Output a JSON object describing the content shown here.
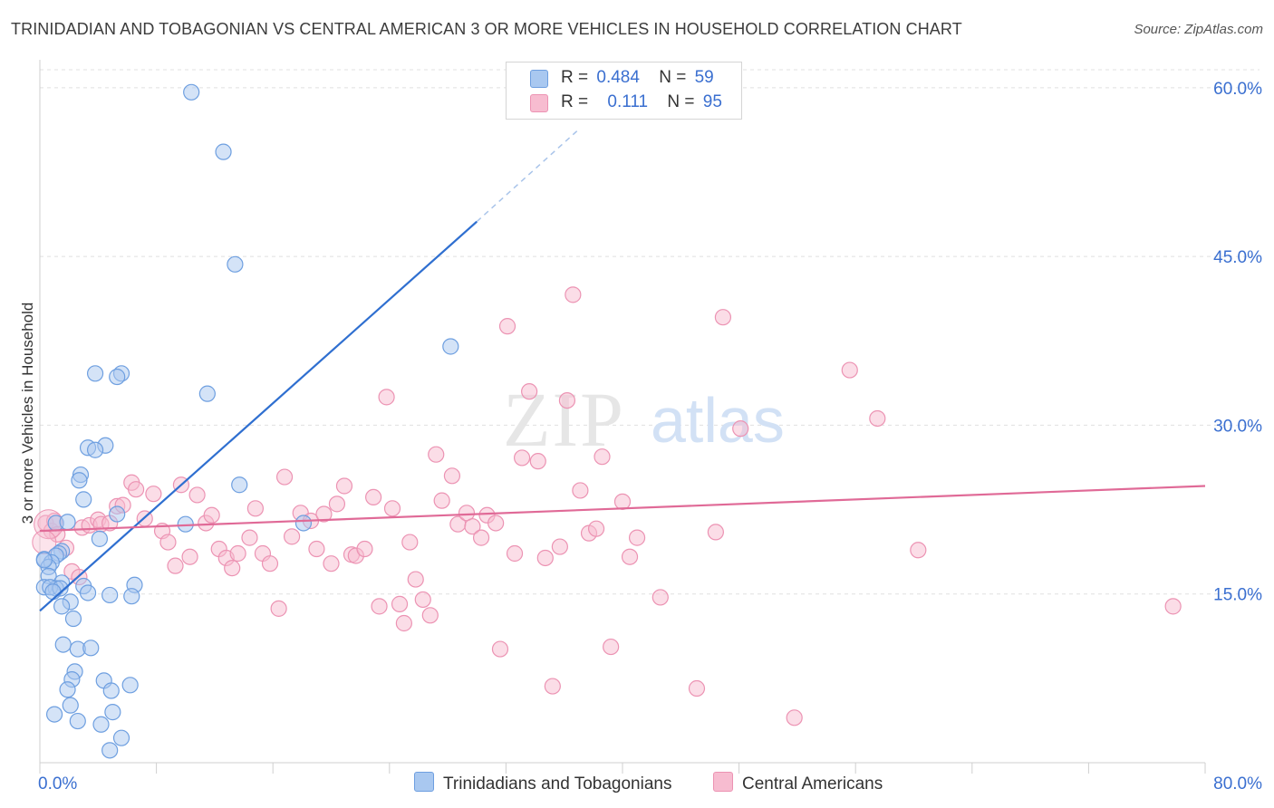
{
  "title": "TRINIDADIAN AND TOBAGONIAN VS CENTRAL AMERICAN 3 OR MORE VEHICLES IN HOUSEHOLD CORRELATION CHART",
  "source": "Source: ZipAtlas.com",
  "watermark": {
    "zip": "ZIP",
    "atlas": "atlas"
  },
  "legend": {
    "r_label": "R =",
    "n_label": "N =",
    "series1": {
      "r": "0.484",
      "n": "59"
    },
    "series2": {
      "r": "0.111",
      "n": "95"
    }
  },
  "colors": {
    "blue_fill": "#a9c8f0",
    "blue_stroke": "#6e9fe0",
    "blue_line": "#2f6fd0",
    "pink_fill": "#f7bcd0",
    "pink_stroke": "#ec93b3",
    "pink_line": "#e06a97",
    "axis_label": "#3a6fd0"
  },
  "chart_data": {
    "type": "scatter",
    "title": "TRINIDADIAN AND TOBAGONIAN VS CENTRAL AMERICAN 3 OR MORE VEHICLES IN HOUSEHOLD CORRELATION CHART",
    "xlabel": "",
    "ylabel": "3 or more Vehicles in Household",
    "xlim": [
      0,
      80
    ],
    "ylim": [
      0,
      62
    ],
    "x_tick_labels": [
      "0.0%",
      "80.0%"
    ],
    "y_ticks": [
      15,
      30,
      45,
      60
    ],
    "y_tick_labels": [
      "15.0%",
      "30.0%",
      "45.0%",
      "60.0%"
    ],
    "grid": true,
    "legend_position": "top-center",
    "series": [
      {
        "name": "Trinidadians and Tobagonians",
        "color": "#6e9fe0",
        "trend": {
          "x0": 0,
          "y0": 13.5,
          "x1": 30,
          "y1": 48.1,
          "dashed_to_x": 37,
          "dashed_to_y": 56.3
        },
        "points": [
          [
            10.4,
            59.6
          ],
          [
            12.6,
            54.3
          ],
          [
            13.4,
            44.3
          ],
          [
            28.2,
            37.0
          ],
          [
            5.6,
            34.6
          ],
          [
            5.3,
            34.3
          ],
          [
            3.8,
            34.6
          ],
          [
            11.5,
            32.8
          ],
          [
            4.5,
            28.2
          ],
          [
            3.3,
            28.0
          ],
          [
            3.8,
            27.8
          ],
          [
            2.8,
            25.6
          ],
          [
            2.7,
            25.1
          ],
          [
            13.7,
            24.7
          ],
          [
            3.0,
            23.4
          ],
          [
            1.1,
            21.3
          ],
          [
            5.3,
            22.1
          ],
          [
            1.9,
            21.4
          ],
          [
            10.0,
            21.2
          ],
          [
            18.1,
            21.3
          ],
          [
            4.1,
            19.9
          ],
          [
            0.3,
            18.1
          ],
          [
            1.5,
            18.8
          ],
          [
            1.3,
            18.6
          ],
          [
            1.1,
            18.4
          ],
          [
            0.8,
            17.8
          ],
          [
            0.6,
            17.4
          ],
          [
            0.6,
            16.6
          ],
          [
            1.5,
            16.0
          ],
          [
            6.5,
            15.8
          ],
          [
            3.0,
            15.7
          ],
          [
            0.3,
            15.6
          ],
          [
            1.1,
            15.5
          ],
          [
            0.7,
            15.6
          ],
          [
            1.4,
            15.5
          ],
          [
            4.8,
            14.9
          ],
          [
            6.3,
            14.8
          ],
          [
            3.3,
            15.1
          ],
          [
            2.1,
            14.3
          ],
          [
            1.5,
            13.9
          ],
          [
            2.3,
            12.8
          ],
          [
            1.6,
            10.5
          ],
          [
            2.6,
            10.1
          ],
          [
            3.5,
            10.2
          ],
          [
            2.4,
            8.1
          ],
          [
            2.2,
            7.4
          ],
          [
            4.4,
            7.3
          ],
          [
            6.2,
            6.9
          ],
          [
            1.9,
            6.5
          ],
          [
            4.9,
            6.4
          ],
          [
            2.1,
            5.1
          ],
          [
            5.0,
            4.5
          ],
          [
            1.0,
            4.3
          ],
          [
            2.6,
            3.7
          ],
          [
            4.2,
            3.4
          ],
          [
            5.6,
            2.2
          ],
          [
            4.8,
            1.1
          ],
          [
            0.3,
            18.0
          ],
          [
            0.9,
            15.2
          ]
        ]
      },
      {
        "name": "Central Americans",
        "color": "#ec93b3",
        "trend": {
          "x0": 0,
          "y0": 20.6,
          "x1": 80,
          "y1": 24.6
        },
        "points": [
          [
            0.4,
            21.3
          ],
          [
            0.8,
            20.6
          ],
          [
            1.0,
            21.5
          ],
          [
            1.2,
            20.3
          ],
          [
            1.8,
            19.1
          ],
          [
            2.2,
            17.0
          ],
          [
            2.7,
            16.5
          ],
          [
            2.9,
            20.9
          ],
          [
            3.4,
            21.1
          ],
          [
            4.0,
            21.6
          ],
          [
            4.2,
            21.2
          ],
          [
            4.8,
            21.3
          ],
          [
            5.3,
            22.8
          ],
          [
            5.7,
            22.9
          ],
          [
            6.3,
            24.9
          ],
          [
            6.6,
            24.3
          ],
          [
            7.2,
            21.7
          ],
          [
            7.8,
            23.9
          ],
          [
            8.4,
            20.6
          ],
          [
            8.8,
            19.6
          ],
          [
            9.3,
            17.5
          ],
          [
            9.7,
            24.7
          ],
          [
            10.3,
            18.3
          ],
          [
            10.8,
            23.8
          ],
          [
            11.4,
            21.3
          ],
          [
            11.8,
            22.0
          ],
          [
            12.3,
            19.0
          ],
          [
            12.8,
            18.2
          ],
          [
            13.2,
            17.3
          ],
          [
            13.6,
            18.6
          ],
          [
            14.4,
            20.0
          ],
          [
            14.8,
            22.6
          ],
          [
            15.3,
            18.6
          ],
          [
            15.8,
            17.7
          ],
          [
            16.4,
            13.7
          ],
          [
            16.8,
            25.4
          ],
          [
            17.3,
            20.1
          ],
          [
            17.9,
            22.2
          ],
          [
            18.6,
            21.5
          ],
          [
            19.0,
            19.0
          ],
          [
            19.5,
            22.1
          ],
          [
            20.0,
            17.7
          ],
          [
            20.4,
            23.0
          ],
          [
            20.9,
            24.6
          ],
          [
            21.4,
            18.5
          ],
          [
            21.7,
            18.4
          ],
          [
            22.3,
            19.0
          ],
          [
            22.9,
            23.6
          ],
          [
            23.3,
            13.9
          ],
          [
            23.8,
            32.5
          ],
          [
            24.2,
            22.6
          ],
          [
            24.7,
            14.1
          ],
          [
            25.0,
            12.4
          ],
          [
            25.4,
            19.6
          ],
          [
            25.8,
            16.3
          ],
          [
            26.3,
            14.5
          ],
          [
            26.8,
            13.1
          ],
          [
            27.2,
            27.4
          ],
          [
            27.6,
            23.3
          ],
          [
            28.3,
            25.5
          ],
          [
            28.7,
            21.2
          ],
          [
            29.3,
            22.2
          ],
          [
            29.7,
            21.0
          ],
          [
            30.3,
            20.0
          ],
          [
            30.7,
            22.0
          ],
          [
            31.3,
            21.3
          ],
          [
            31.6,
            10.1
          ],
          [
            32.1,
            38.8
          ],
          [
            32.6,
            18.6
          ],
          [
            33.1,
            27.1
          ],
          [
            33.6,
            33.0
          ],
          [
            34.2,
            26.8
          ],
          [
            34.7,
            18.2
          ],
          [
            35.2,
            6.8
          ],
          [
            35.7,
            19.2
          ],
          [
            36.2,
            32.2
          ],
          [
            36.6,
            41.6
          ],
          [
            37.1,
            24.2
          ],
          [
            37.7,
            20.4
          ],
          [
            38.2,
            20.8
          ],
          [
            38.6,
            27.2
          ],
          [
            39.2,
            10.3
          ],
          [
            40.0,
            23.2
          ],
          [
            40.5,
            18.3
          ],
          [
            41.0,
            20.0
          ],
          [
            42.6,
            14.7
          ],
          [
            45.1,
            6.6
          ],
          [
            46.4,
            20.5
          ],
          [
            46.9,
            39.6
          ],
          [
            48.1,
            29.7
          ],
          [
            51.8,
            4.0
          ],
          [
            55.6,
            34.9
          ],
          [
            57.5,
            30.6
          ],
          [
            60.3,
            18.9
          ],
          [
            77.8,
            13.9
          ]
        ]
      }
    ]
  }
}
